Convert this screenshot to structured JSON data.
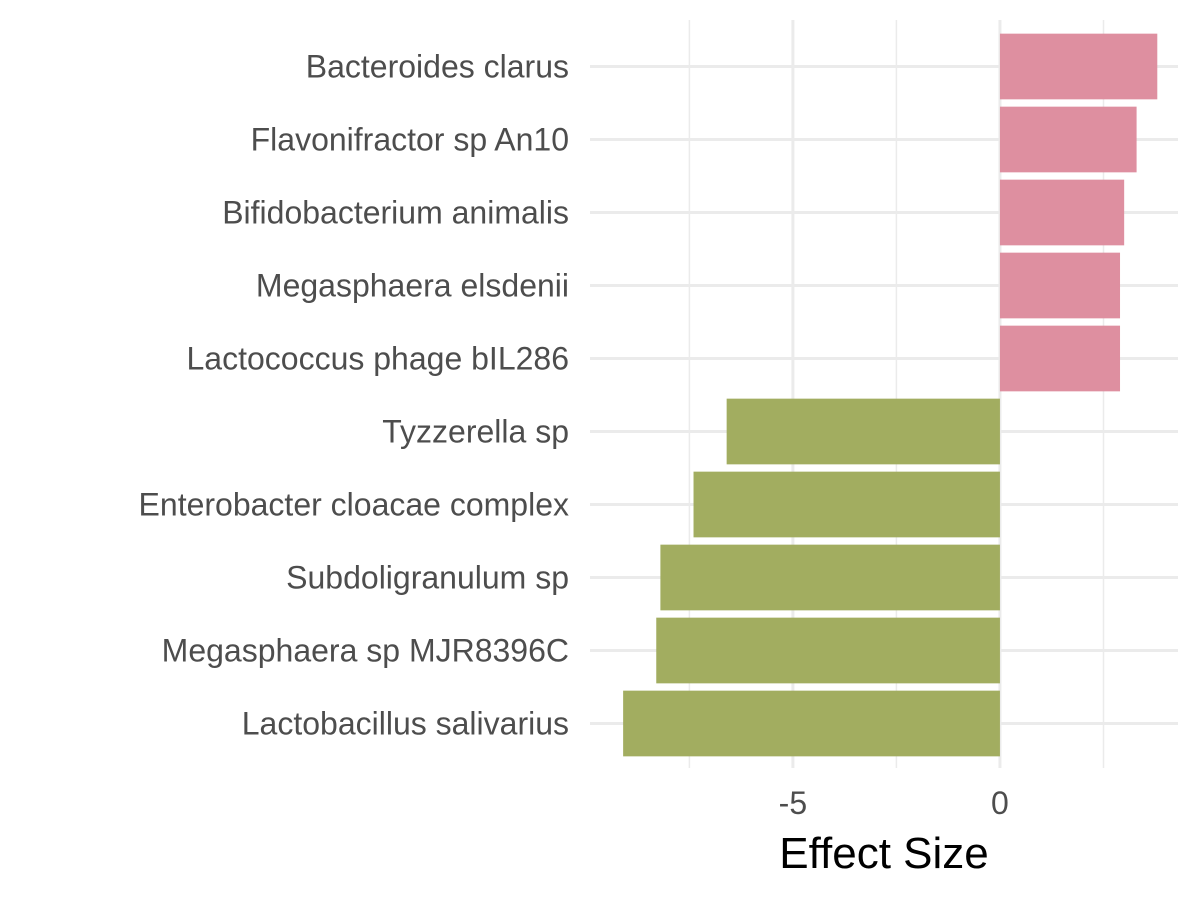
{
  "chart_data": {
    "type": "bar",
    "orientation": "horizontal",
    "categories": [
      "Bacteroides clarus",
      "Flavonifractor sp An10",
      "Bifidobacterium animalis",
      "Megasphaera elsdenii",
      "Lactococcus phage bIL286",
      "Tyzzerella sp",
      "Enterobacter cloacae complex",
      "Subdoligranulum sp",
      "Megasphaera sp MJR8396C",
      "Lactobacillus salivarius"
    ],
    "values": [
      3.8,
      3.3,
      3.0,
      2.9,
      2.9,
      -6.6,
      -7.4,
      -8.2,
      -8.3,
      -9.1
    ],
    "xlabel": "Effect Size",
    "ylabel": "",
    "xlim": [
      -9.9,
      4.3
    ],
    "x_ticks": [
      -5,
      0
    ],
    "x_tick_labels": [
      "-5",
      "0"
    ],
    "x_minor_gridlines": [
      -7.5,
      -2.5,
      2.5
    ],
    "grid": true,
    "colors": {
      "positive": "#de8fa0",
      "negative": "#a2ad60",
      "grid": "#ebebeb",
      "label": "#4d4d4d"
    }
  }
}
